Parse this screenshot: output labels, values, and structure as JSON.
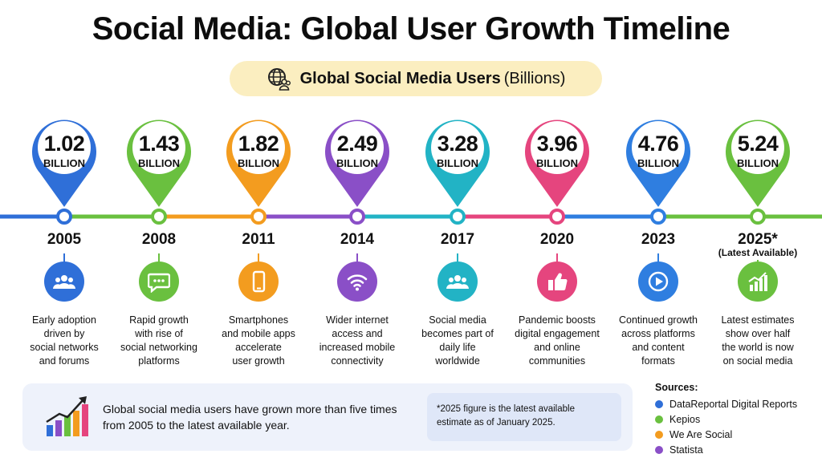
{
  "header": {
    "title": "Social Media: Global User Growth Timeline",
    "subtitle_bold": "Global Social Media Users",
    "subtitle_unit": "(Billions)"
  },
  "unit_label": "BILLION",
  "milestones": [
    {
      "year": "2005",
      "value": "1.02",
      "color": "#2f6fd8",
      "icon": "people-icon",
      "desc_lines": [
        "Early adoption",
        "driven by",
        "social networks",
        "and forums"
      ]
    },
    {
      "year": "2008",
      "value": "1.43",
      "color": "#6ac03f",
      "icon": "chat-bubble-icon",
      "desc_lines": [
        "Rapid growth",
        "with rise of",
        "social networking",
        "platforms"
      ]
    },
    {
      "year": "2011",
      "value": "1.82",
      "color": "#f39c1f",
      "icon": "smartphone-icon",
      "desc_lines": [
        "Smartphones",
        "and mobile apps",
        "accelerate",
        "user growth"
      ]
    },
    {
      "year": "2014",
      "value": "2.49",
      "color": "#8a4fc7",
      "icon": "wifi-icon",
      "desc_lines": [
        "Wider internet",
        "access and",
        "increased mobile",
        "connectivity"
      ]
    },
    {
      "year": "2017",
      "value": "3.28",
      "color": "#22b3c5",
      "icon": "people-icon",
      "desc_lines": [
        "Social media",
        "becomes part of",
        "daily life",
        "worldwide"
      ]
    },
    {
      "year": "2020",
      "value": "3.96",
      "color": "#e5457e",
      "icon": "thumbs-up-icon",
      "desc_lines": [
        "Pandemic boosts",
        "digital engagement",
        "and online",
        "communities"
      ]
    },
    {
      "year": "2023",
      "value": "4.76",
      "color": "#2f7ee0",
      "icon": "play-icon",
      "desc_lines": [
        "Continued growth",
        "across platforms",
        "and content",
        "formats"
      ]
    },
    {
      "year": "2025*",
      "year_note": "(Latest Available)",
      "value": "5.24",
      "color": "#6ac03f",
      "icon": "growth-chart-icon",
      "desc_lines": [
        "Latest estimates",
        "show over half",
        "the world is now",
        "on social media"
      ]
    }
  ],
  "summary": "Global social media users have grown more than five times from 2005 to the latest available year.",
  "footnote": "*2025 figure is the latest available estimate as of January 2025.",
  "sources": {
    "heading": "Sources:",
    "items": [
      {
        "label": "DataReportal Digital Reports",
        "color": "#2f6fd8"
      },
      {
        "label": "Kepios",
        "color": "#6ac03f"
      },
      {
        "label": "We Are Social",
        "color": "#f39c1f"
      },
      {
        "label": "Statista",
        "color": "#8a4fc7"
      }
    ]
  }
}
